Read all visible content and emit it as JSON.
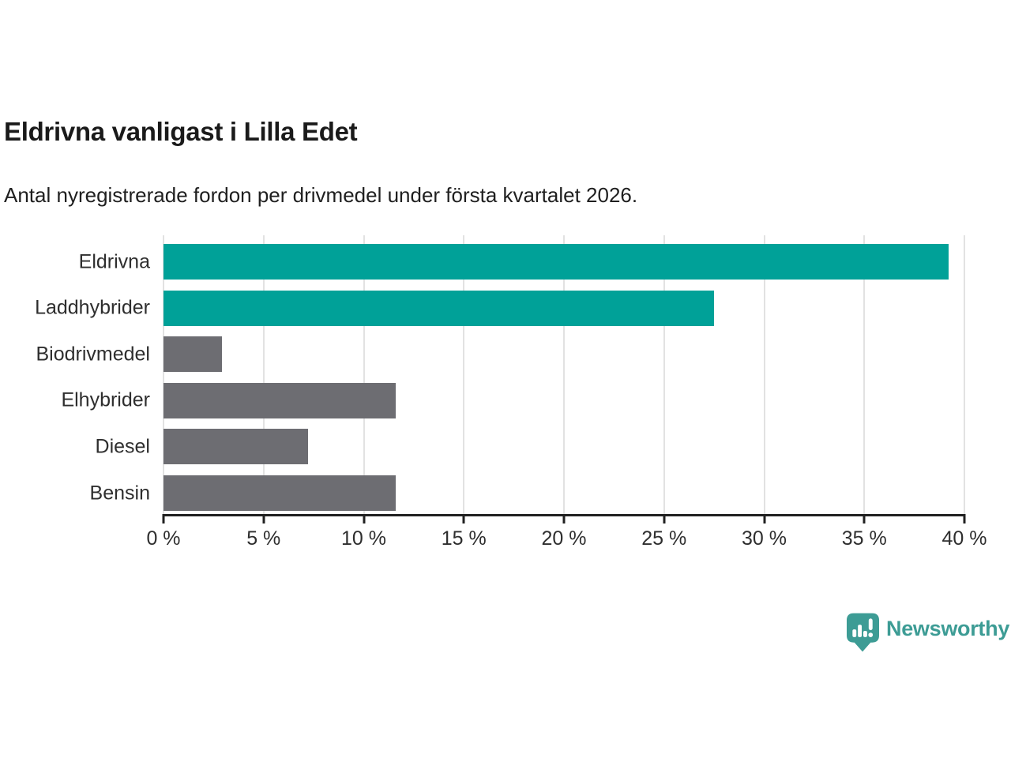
{
  "header": {
    "title": "Eldrivna vanligast i Lilla Edet",
    "subtitle": "Antal nyregistrerade fordon per drivmedel under första kvartalet 2026."
  },
  "chart_data": {
    "type": "bar",
    "orientation": "horizontal",
    "title": "Eldrivna vanligast i Lilla Edet",
    "subtitle": "Antal nyregistrerade fordon per drivmedel under första kvartalet 2026.",
    "categories": [
      "Eldrivna",
      "Laddhybrider",
      "Biodrivmedel",
      "Elhybrider",
      "Diesel",
      "Bensin"
    ],
    "values": [
      39.2,
      27.5,
      2.9,
      11.6,
      7.2,
      11.6
    ],
    "unit": "%",
    "bar_colors": [
      "#00a198",
      "#00a198",
      "#6d6d72",
      "#6d6d72",
      "#6d6d72",
      "#6d6d72"
    ],
    "xlabel": "",
    "ylabel": "",
    "xlim": [
      0,
      40
    ],
    "x_ticks": [
      0,
      5,
      10,
      15,
      20,
      25,
      30,
      35,
      40
    ],
    "x_tick_labels": [
      "0 %",
      "5 %",
      "10 %",
      "15 %",
      "20 %",
      "25 %",
      "30 %",
      "35 %",
      "40 %"
    ],
    "grid": "vertical-only",
    "legend": "none"
  },
  "branding": {
    "logo_text": "Newsworthy"
  },
  "colors": {
    "accent_teal": "#00a198",
    "bar_gray": "#6d6d72",
    "logo_teal": "#3d9c95",
    "grid": "#e2e2e2",
    "axis": "#212121",
    "title_text": "#1a1a1a",
    "label_text": "#2e2e2e",
    "background": "#ffffff"
  }
}
